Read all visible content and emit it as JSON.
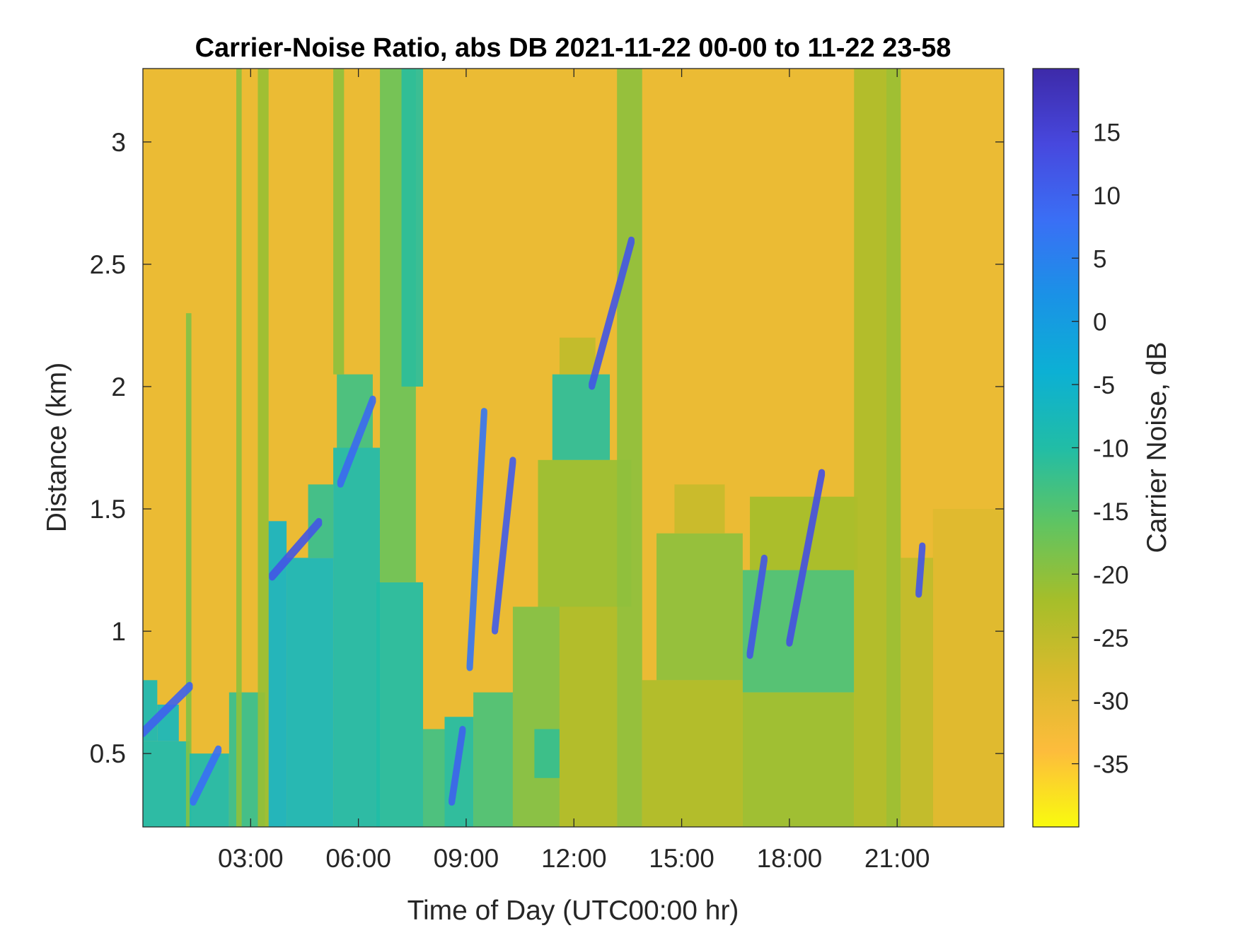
{
  "chart_data": {
    "type": "heatmap",
    "title": "Carrier-Noise Ratio, abs DB 2021-11-22 00-00 to 11-22 23-58",
    "xlabel": "Time of Day (UTC00:00 hr)",
    "ylabel": "Distance (km)",
    "xlim": [
      0,
      23.97
    ],
    "ylim": [
      0.2,
      3.3
    ],
    "x_ticks": [
      {
        "value": 3,
        "label": "03:00"
      },
      {
        "value": 6,
        "label": "06:00"
      },
      {
        "value": 9,
        "label": "09:00"
      },
      {
        "value": 12,
        "label": "12:00"
      },
      {
        "value": 15,
        "label": "15:00"
      },
      {
        "value": 18,
        "label": "18:00"
      },
      {
        "value": 21,
        "label": "21:00"
      }
    ],
    "y_ticks": [
      {
        "value": 0.5,
        "label": "0.5"
      },
      {
        "value": 1,
        "label": "1"
      },
      {
        "value": 1.5,
        "label": "1.5"
      },
      {
        "value": 2,
        "label": "2"
      },
      {
        "value": 2.5,
        "label": "2.5"
      },
      {
        "value": 3,
        "label": "3"
      }
    ],
    "colorbar": {
      "label": "Carrier Noise, dB",
      "range": [
        -40,
        20
      ],
      "ticks": [
        {
          "value": 15,
          "label": "15"
        },
        {
          "value": 10,
          "label": "10"
        },
        {
          "value": 5,
          "label": "5"
        },
        {
          "value": 0,
          "label": "0"
        },
        {
          "value": -5,
          "label": "-5"
        },
        {
          "value": -10,
          "label": "-10"
        },
        {
          "value": -15,
          "label": "-15"
        },
        {
          "value": -20,
          "label": "-20"
        },
        {
          "value": -25,
          "label": "-25"
        },
        {
          "value": -30,
          "label": "-30"
        },
        {
          "value": -35,
          "label": "-35"
        }
      ],
      "colors": [
        "#f9fb0e",
        "#fdbc3c",
        "#d8ba2c",
        "#a5be2a",
        "#5fc462",
        "#21bda6",
        "#0cb0d4",
        "#1a92e6",
        "#3a6ff5",
        "#4748de",
        "#3d2aa9"
      ]
    },
    "background_value": -31,
    "regions": [
      {
        "x": [
          0.0,
          1.3
        ],
        "y": [
          0.2,
          0.55
        ],
        "value": -9
      },
      {
        "x": [
          0.0,
          0.4
        ],
        "y": [
          0.55,
          0.8
        ],
        "value": -8
      },
      {
        "x": [
          0.4,
          1.0
        ],
        "y": [
          0.55,
          0.7
        ],
        "value": -7
      },
      {
        "x": [
          1.2,
          1.35
        ],
        "y": [
          0.2,
          2.3
        ],
        "value": -19
      },
      {
        "x": [
          1.3,
          2.4
        ],
        "y": [
          0.2,
          0.5
        ],
        "value": -9
      },
      {
        "x": [
          2.4,
          3.4
        ],
        "y": [
          0.2,
          0.75
        ],
        "value": -12
      },
      {
        "x": [
          2.6,
          2.75
        ],
        "y": [
          0.2,
          3.3
        ],
        "value": -20
      },
      {
        "x": [
          3.2,
          3.5
        ],
        "y": [
          0.2,
          3.3
        ],
        "value": -21
      },
      {
        "x": [
          3.5,
          4.0
        ],
        "y": [
          0.2,
          1.45
        ],
        "value": -6
      },
      {
        "x": [
          4.0,
          5.3
        ],
        "y": [
          0.2,
          1.3
        ],
        "value": -7
      },
      {
        "x": [
          4.6,
          5.3
        ],
        "y": [
          1.3,
          1.6
        ],
        "value": -12
      },
      {
        "x": [
          5.3,
          6.6
        ],
        "y": [
          0.2,
          1.75
        ],
        "value": -9
      },
      {
        "x": [
          5.4,
          6.4
        ],
        "y": [
          1.75,
          2.05
        ],
        "value": -13
      },
      {
        "x": [
          5.3,
          5.6
        ],
        "y": [
          2.05,
          3.3
        ],
        "value": -20
      },
      {
        "x": [
          6.5,
          7.8
        ],
        "y": [
          0.2,
          1.2
        ],
        "value": -10
      },
      {
        "x": [
          6.6,
          7.6
        ],
        "y": [
          1.2,
          3.3
        ],
        "value": -17
      },
      {
        "x": [
          7.2,
          7.8
        ],
        "y": [
          2.0,
          3.3
        ],
        "value": -11
      },
      {
        "x": [
          7.8,
          8.4
        ],
        "y": [
          0.2,
          0.6
        ],
        "value": -13
      },
      {
        "x": [
          8.4,
          9.2
        ],
        "y": [
          0.2,
          0.65
        ],
        "value": -10
      },
      {
        "x": [
          9.2,
          10.3
        ],
        "y": [
          0.2,
          0.75
        ],
        "value": -14
      },
      {
        "x": [
          10.3,
          11.6
        ],
        "y": [
          0.2,
          1.1
        ],
        "value": -19
      },
      {
        "x": [
          10.9,
          11.6
        ],
        "y": [
          0.4,
          0.6
        ],
        "value": -12
      },
      {
        "x": [
          11.0,
          13.6
        ],
        "y": [
          1.1,
          1.7
        ],
        "value": -21
      },
      {
        "x": [
          11.4,
          13.0
        ],
        "y": [
          1.7,
          2.05
        ],
        "value": -11
      },
      {
        "x": [
          11.6,
          12.6
        ],
        "y": [
          2.05,
          2.2
        ],
        "value": -25
      },
      {
        "x": [
          11.6,
          13.2
        ],
        "y": [
          0.2,
          1.1
        ],
        "value": -23
      },
      {
        "x": [
          13.2,
          13.9
        ],
        "y": [
          0.2,
          3.3
        ],
        "value": -20
      },
      {
        "x": [
          13.9,
          16.7
        ],
        "y": [
          0.2,
          0.8
        ],
        "value": -23
      },
      {
        "x": [
          14.3,
          16.7
        ],
        "y": [
          0.8,
          1.4
        ],
        "value": -20
      },
      {
        "x": [
          14.8,
          16.2
        ],
        "y": [
          1.4,
          1.6
        ],
        "value": -26
      },
      {
        "x": [
          16.7,
          19.8
        ],
        "y": [
          0.2,
          0.75
        ],
        "value": -21
      },
      {
        "x": [
          16.7,
          19.8
        ],
        "y": [
          0.75,
          1.25
        ],
        "value": -14
      },
      {
        "x": [
          16.9,
          19.9
        ],
        "y": [
          1.25,
          1.55
        ],
        "value": -22
      },
      {
        "x": [
          19.8,
          20.7
        ],
        "y": [
          0.2,
          3.3
        ],
        "value": -23
      },
      {
        "x": [
          20.7,
          21.1
        ],
        "y": [
          0.2,
          3.3
        ],
        "value": -21
      },
      {
        "x": [
          21.1,
          22.0
        ],
        "y": [
          0.2,
          1.3
        ],
        "value": -25
      },
      {
        "x": [
          22.0,
          23.97
        ],
        "y": [
          0.2,
          1.5
        ],
        "value": -29
      }
    ],
    "strong_echoes": [
      {
        "x": [
          0.0,
          1.3
        ],
        "y": [
          0.58,
          0.78
        ],
        "value": 10
      },
      {
        "x": [
          1.4,
          2.1
        ],
        "y": [
          0.3,
          0.52
        ],
        "value": 8
      },
      {
        "x": [
          3.6,
          4.9
        ],
        "y": [
          1.22,
          1.45
        ],
        "value": 12
      },
      {
        "x": [
          5.5,
          6.4
        ],
        "y": [
          1.6,
          1.95
        ],
        "value": 9
      },
      {
        "x": [
          8.6,
          8.9
        ],
        "y": [
          0.3,
          0.6
        ],
        "value": 10
      },
      {
        "x": [
          9.1,
          9.5
        ],
        "y": [
          0.85,
          1.9
        ],
        "value": 7
      },
      {
        "x": [
          9.8,
          10.3
        ],
        "y": [
          1.0,
          1.7
        ],
        "value": 11
      },
      {
        "x": [
          12.5,
          13.6
        ],
        "y": [
          2.0,
          2.6
        ],
        "value": 12
      },
      {
        "x": [
          16.9,
          17.3
        ],
        "y": [
          0.9,
          1.3
        ],
        "value": 12
      },
      {
        "x": [
          18.0,
          18.9
        ],
        "y": [
          0.95,
          1.65
        ],
        "value": 13
      },
      {
        "x": [
          21.6,
          21.7
        ],
        "y": [
          1.15,
          1.35
        ],
        "value": 12
      }
    ]
  }
}
